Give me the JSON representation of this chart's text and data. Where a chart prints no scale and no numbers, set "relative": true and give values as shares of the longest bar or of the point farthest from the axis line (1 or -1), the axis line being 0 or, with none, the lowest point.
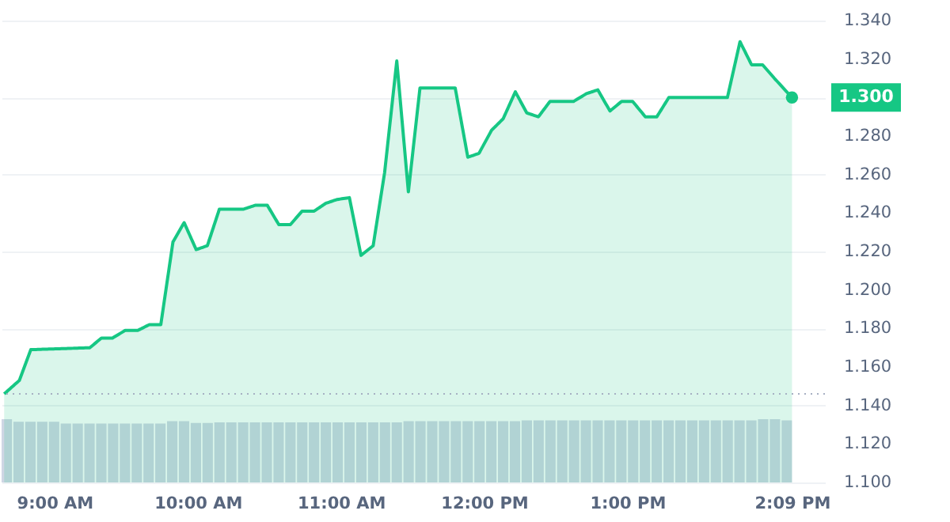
{
  "chart_data": [
    {
      "type": "area",
      "x": [
        8.648,
        8.754,
        8.834,
        9.246,
        9.327,
        9.404,
        9.493,
        9.581,
        9.662,
        9.742,
        9.827,
        9.905,
        9.989,
        10.067,
        10.151,
        10.32,
        10.401,
        10.486,
        10.566,
        10.647,
        10.729,
        10.813,
        10.893,
        10.971,
        11.059,
        11.14,
        11.225,
        11.305,
        11.39,
        11.471,
        11.552,
        11.798,
        11.886,
        11.964,
        12.052,
        12.133,
        12.218,
        12.298,
        12.379,
        12.46,
        12.625,
        12.714,
        12.794,
        12.879,
        12.96,
        13.037,
        13.126,
        13.206,
        13.29,
        13.699,
        13.787,
        13.868,
        13.945,
        14.027,
        14.15
      ],
      "series": [
        {
          "color": "#16c784",
          "values": [
            1.146,
            1.153,
            1.169,
            1.17,
            1.175,
            1.175,
            1.179,
            1.179,
            1.182,
            1.182,
            1.225,
            1.235,
            1.221,
            1.223,
            1.242,
            1.242,
            1.244,
            1.244,
            1.234,
            1.234,
            1.241,
            1.241,
            1.245,
            1.247,
            1.248,
            1.218,
            1.223,
            1.261,
            1.319,
            1.251,
            1.305,
            1.305,
            1.269,
            1.271,
            1.283,
            1.289,
            1.303,
            1.292,
            1.29,
            1.298,
            1.298,
            1.302,
            1.304,
            1.293,
            1.298,
            1.298,
            1.29,
            1.29,
            1.3,
            1.3,
            1.329,
            1.317,
            1.317,
            1.31,
            1.3
          ]
        }
      ],
      "xlim": [
        8.63,
        14.38
      ],
      "ylim": [
        1.1,
        1.34
      ],
      "xticks": [
        {
          "value": 9,
          "label": "9:00 AM"
        },
        {
          "value": 10,
          "label": "10:00 AM"
        },
        {
          "value": 11,
          "label": "11:00 AM"
        },
        {
          "value": 12,
          "label": "12:00 PM"
        },
        {
          "value": 13,
          "label": "1:00 PM"
        },
        {
          "value": 14.15,
          "label": "2:09 PM"
        }
      ],
      "yticks": [
        {
          "value": 1.1,
          "label": "1.100"
        },
        {
          "value": 1.12,
          "label": "1.120"
        },
        {
          "value": 1.14,
          "label": "1.140"
        },
        {
          "value": 1.16,
          "label": "1.160"
        },
        {
          "value": 1.18,
          "label": "1.180"
        },
        {
          "value": 1.2,
          "label": "1.200"
        },
        {
          "value": 1.22,
          "label": "1.220"
        },
        {
          "value": 1.24,
          "label": "1.240"
        },
        {
          "value": 1.26,
          "label": "1.260"
        },
        {
          "value": 1.28,
          "label": "1.280"
        },
        {
          "value": 1.3,
          "label": null
        },
        {
          "value": 1.32,
          "label": "1.320"
        },
        {
          "value": 1.34,
          "label": "1.340"
        }
      ],
      "grid": "y",
      "ref_lines": [
        {
          "axis": "y",
          "value": 1.146,
          "color": "#a6b0c3",
          "line_style": "dotted"
        }
      ],
      "annotations": [
        {
          "text": "1.300",
          "x": 14.15,
          "y": 1.3
        }
      ]
    },
    {
      "type": "bar",
      "relative": true,
      "categories": [
        null,
        null,
        null,
        null,
        null,
        null,
        null,
        null,
        null,
        null,
        null,
        null,
        null,
        null,
        null,
        null,
        null,
        null,
        null,
        null,
        null,
        null,
        null,
        null,
        null,
        null,
        null,
        null,
        null,
        null,
        null,
        null,
        null,
        null,
        null,
        null,
        null,
        null,
        null,
        null,
        null,
        null,
        null,
        null,
        null,
        null,
        null,
        null,
        null,
        null,
        null,
        null,
        null,
        null,
        null,
        null,
        null,
        null,
        null,
        null,
        null,
        null,
        null,
        null,
        null,
        null,
        null
      ],
      "series": [
        {
          "color": "#cfd6e4",
          "values": [
            1.0,
            0.96,
            0.96,
            0.96,
            0.96,
            0.93,
            0.93,
            0.93,
            0.93,
            0.93,
            0.93,
            0.93,
            0.93,
            0.93,
            0.97,
            0.97,
            0.94,
            0.94,
            0.95,
            0.95,
            0.95,
            0.95,
            0.95,
            0.95,
            0.95,
            0.95,
            0.95,
            0.95,
            0.95,
            0.95,
            0.95,
            0.95,
            0.95,
            0.95,
            0.97,
            0.97,
            0.97,
            0.97,
            0.97,
            0.97,
            0.97,
            0.97,
            0.97,
            0.97,
            0.98,
            0.98,
            0.98,
            0.98,
            0.98,
            0.98,
            0.98,
            0.98,
            0.98,
            0.98,
            0.98,
            0.98,
            0.98,
            0.98,
            0.98,
            0.98,
            0.98,
            0.98,
            0.98,
            0.98,
            1.0,
            1.0,
            0.98
          ]
        }
      ]
    }
  ]
}
